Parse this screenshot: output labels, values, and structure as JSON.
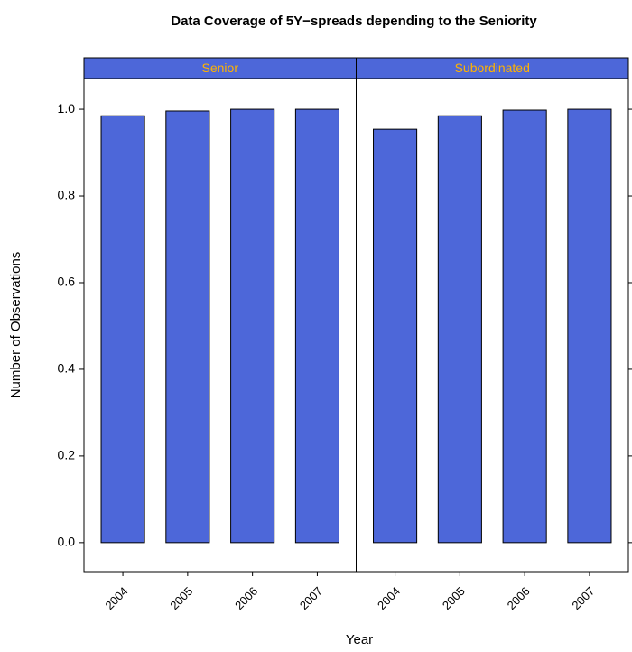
{
  "chart_data": {
    "type": "bar",
    "title": "Data Coverage of 5Y−spreads depending to the Seniority",
    "x_label": "Year",
    "y_label": "Number of Observations",
    "color": "#4d67d9",
    "strip_color": "#4d67d9",
    "strip_text_color": "#ffb300",
    "ylim": [
      -0.067,
      1.071
    ],
    "yticks": [
      {
        "value": 0,
        "label": "0.0"
      },
      {
        "value": 0.2,
        "label": "0.2"
      },
      {
        "value": 0.4,
        "label": "0.4"
      },
      {
        "value": 0.6,
        "label": "0.6"
      },
      {
        "value": 0.8,
        "label": "0.8"
      },
      {
        "value": 1,
        "label": "1.0"
      }
    ],
    "panels": [
      {
        "name": "Senior",
        "categories": [
          "2004",
          "2005",
          "2006",
          "2007"
        ],
        "values": [
          0.985,
          0.996,
          1.0,
          1.0
        ]
      },
      {
        "name": "Subordinated",
        "categories": [
          "2004",
          "2005",
          "2006",
          "2007"
        ],
        "values": [
          0.954,
          0.985,
          0.998,
          1.0
        ]
      }
    ]
  }
}
